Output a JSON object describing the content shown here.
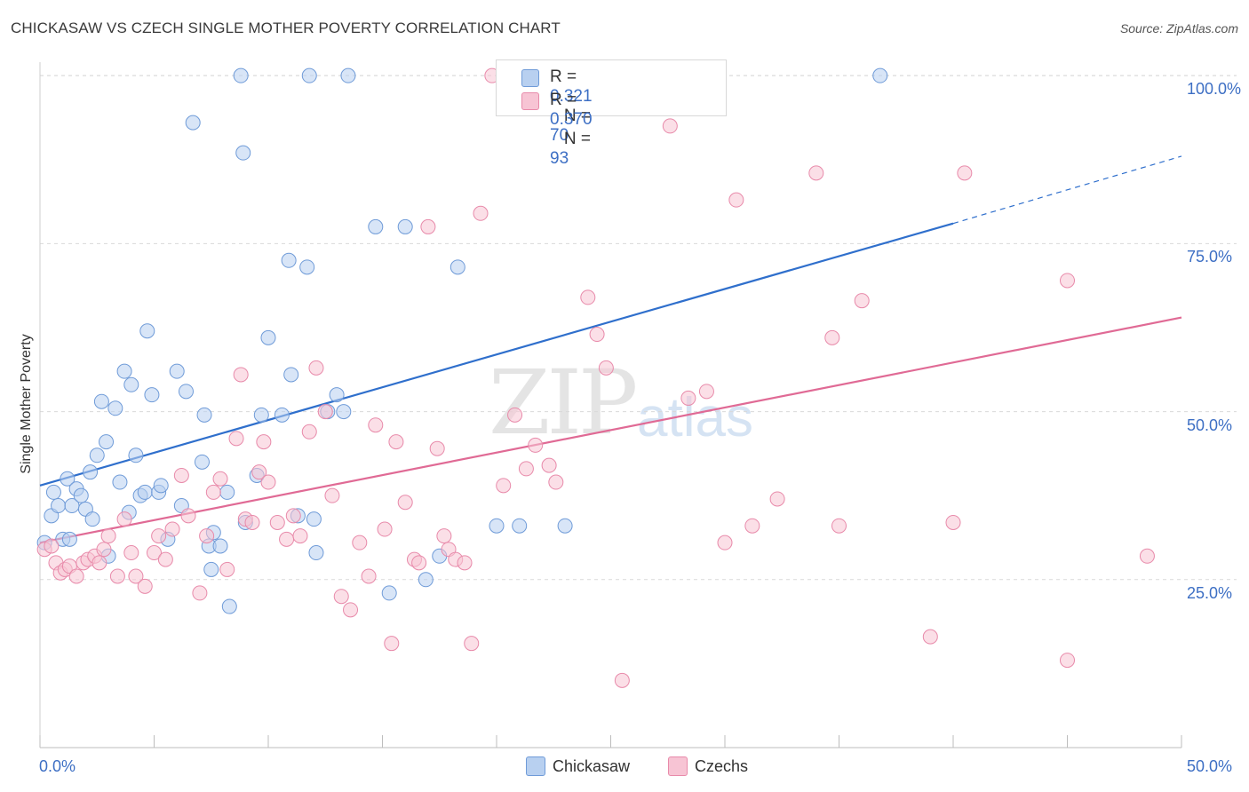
{
  "title": "CHICKASAW VS CZECH SINGLE MOTHER POVERTY CORRELATION CHART",
  "source": "Source: ZipAtlas.com",
  "watermark": {
    "zip": "ZIP",
    "atlas": "atlas"
  },
  "colors": {
    "blue_fill": "#b8d0f0",
    "blue_stroke": "#6f9bd8",
    "blue_line": "#2f6fcc",
    "pink_fill": "#f7c4d4",
    "pink_stroke": "#e88aaa",
    "pink_line": "#e06a95",
    "axis_text": "#3d6fc4",
    "grid": "#d9d9d9"
  },
  "legend": {
    "rows": [
      {
        "r_label": "R =",
        "r_value": "0.321",
        "n_label": "N =",
        "n_value": "70"
      },
      {
        "r_label": "R =",
        "r_value": "0.370",
        "n_label": "N =",
        "n_value": "93"
      }
    ]
  },
  "bottom_legend": {
    "series1": "Chickasaw",
    "series2": "Czechs"
  },
  "chart_data": {
    "type": "scatter",
    "title": "CHICKASAW VS CZECH SINGLE MOTHER POVERTY CORRELATION CHART",
    "xlabel": "",
    "ylabel": "Single Mother Poverty",
    "xlim": [
      0,
      50
    ],
    "ylim": [
      0,
      102
    ],
    "x_tick_labels": [
      "0.0%",
      "50.0%"
    ],
    "y_tick_labels": [
      "25.0%",
      "50.0%",
      "75.0%",
      "100.0%"
    ],
    "y_ticks": [
      25,
      50,
      75,
      100
    ],
    "grid": true,
    "legend_position": "top-center",
    "series": [
      {
        "name": "Chickasaw",
        "r": 0.321,
        "n": 70,
        "trend": {
          "x0": 0,
          "y0": 39,
          "x1": 40,
          "y1": 78,
          "dash_to_x": 50,
          "dash_to_y": 88
        },
        "points": [
          [
            0.2,
            30.5
          ],
          [
            0.5,
            34.5
          ],
          [
            0.6,
            38
          ],
          [
            0.8,
            36
          ],
          [
            1.0,
            31
          ],
          [
            1.2,
            40
          ],
          [
            1.4,
            36
          ],
          [
            1.6,
            38.5
          ],
          [
            1.8,
            37.5
          ],
          [
            2.0,
            35.5
          ],
          [
            2.2,
            41
          ],
          [
            2.3,
            34
          ],
          [
            2.5,
            43.5
          ],
          [
            2.7,
            51.5
          ],
          [
            2.9,
            45.5
          ],
          [
            3.0,
            28.5
          ],
          [
            3.3,
            50.5
          ],
          [
            3.5,
            39.5
          ],
          [
            3.7,
            56
          ],
          [
            3.9,
            35
          ],
          [
            4.0,
            54
          ],
          [
            4.2,
            43.5
          ],
          [
            4.4,
            37.5
          ],
          [
            4.6,
            38
          ],
          [
            4.7,
            62
          ],
          [
            4.9,
            52.5
          ],
          [
            5.2,
            38
          ],
          [
            5.3,
            39
          ],
          [
            5.6,
            31
          ],
          [
            6.0,
            56
          ],
          [
            6.2,
            36
          ],
          [
            6.4,
            53
          ],
          [
            6.7,
            93
          ],
          [
            7.1,
            42.5
          ],
          [
            7.2,
            49.5
          ],
          [
            7.4,
            30
          ],
          [
            7.5,
            26.5
          ],
          [
            7.6,
            32
          ],
          [
            7.9,
            30
          ],
          [
            8.2,
            38
          ],
          [
            8.3,
            21
          ],
          [
            8.8,
            100
          ],
          [
            8.9,
            88.5
          ],
          [
            9.0,
            33.5
          ],
          [
            9.5,
            40.5
          ],
          [
            9.7,
            49.5
          ],
          [
            10.0,
            61
          ],
          [
            10.6,
            49.5
          ],
          [
            10.9,
            72.5
          ],
          [
            11.0,
            55.5
          ],
          [
            11.3,
            34.5
          ],
          [
            11.7,
            71.5
          ],
          [
            11.8,
            100
          ],
          [
            12.0,
            34
          ],
          [
            12.1,
            29
          ],
          [
            12.6,
            50
          ],
          [
            13.0,
            52.5
          ],
          [
            13.3,
            50
          ],
          [
            13.5,
            100
          ],
          [
            14.7,
            77.5
          ],
          [
            15.3,
            23
          ],
          [
            16.0,
            77.5
          ],
          [
            16.9,
            25
          ],
          [
            17.5,
            28.5
          ],
          [
            18.3,
            71.5
          ],
          [
            20.0,
            33
          ],
          [
            21.0,
            33
          ],
          [
            23.0,
            33
          ],
          [
            36.8,
            100
          ],
          [
            1.3,
            31
          ]
        ]
      },
      {
        "name": "Czechs",
        "r": 0.37,
        "n": 93,
        "trend": {
          "x0": 0,
          "y0": 30.5,
          "x1": 50,
          "y1": 64
        },
        "points": [
          [
            0.2,
            29.5
          ],
          [
            0.5,
            30
          ],
          [
            0.7,
            27.5
          ],
          [
            0.9,
            26
          ],
          [
            1.1,
            26.5
          ],
          [
            1.3,
            27
          ],
          [
            1.6,
            25.5
          ],
          [
            1.9,
            27.5
          ],
          [
            2.1,
            28
          ],
          [
            2.4,
            28.5
          ],
          [
            2.6,
            27.5
          ],
          [
            2.8,
            29.5
          ],
          [
            3.0,
            31.5
          ],
          [
            3.4,
            25.5
          ],
          [
            3.7,
            34
          ],
          [
            4.0,
            29
          ],
          [
            4.2,
            25.5
          ],
          [
            4.6,
            24
          ],
          [
            5.0,
            29
          ],
          [
            5.2,
            31.5
          ],
          [
            5.5,
            28
          ],
          [
            5.8,
            32.5
          ],
          [
            6.2,
            40.5
          ],
          [
            6.5,
            34.5
          ],
          [
            7.0,
            23
          ],
          [
            7.3,
            31.5
          ],
          [
            7.6,
            38
          ],
          [
            7.9,
            40
          ],
          [
            8.2,
            26.5
          ],
          [
            8.6,
            46
          ],
          [
            8.8,
            55.5
          ],
          [
            9.0,
            34
          ],
          [
            9.3,
            33.5
          ],
          [
            9.6,
            41
          ],
          [
            9.8,
            45.5
          ],
          [
            10.0,
            39.5
          ],
          [
            10.4,
            33.5
          ],
          [
            10.8,
            31
          ],
          [
            11.1,
            34.5
          ],
          [
            11.4,
            31.5
          ],
          [
            11.8,
            47
          ],
          [
            12.1,
            56.5
          ],
          [
            12.5,
            50
          ],
          [
            12.8,
            37.5
          ],
          [
            13.2,
            22.5
          ],
          [
            13.6,
            20.5
          ],
          [
            14.0,
            30.5
          ],
          [
            14.4,
            25.5
          ],
          [
            14.7,
            48
          ],
          [
            15.1,
            32.5
          ],
          [
            15.4,
            15.5
          ],
          [
            15.6,
            45.5
          ],
          [
            16.0,
            36.5
          ],
          [
            16.4,
            28
          ],
          [
            16.6,
            27.5
          ],
          [
            17.0,
            77.5
          ],
          [
            17.4,
            44.5
          ],
          [
            17.7,
            31.5
          ],
          [
            17.9,
            29.5
          ],
          [
            18.2,
            28
          ],
          [
            18.6,
            27.5
          ],
          [
            18.9,
            15.5
          ],
          [
            19.3,
            79.5
          ],
          [
            19.8,
            100
          ],
          [
            20.3,
            39
          ],
          [
            20.8,
            49.5
          ],
          [
            21.3,
            41.5
          ],
          [
            21.7,
            45
          ],
          [
            22.3,
            42
          ],
          [
            22.6,
            39.5
          ],
          [
            23.0,
            100
          ],
          [
            24.0,
            67
          ],
          [
            24.4,
            61.5
          ],
          [
            24.8,
            56.5
          ],
          [
            25.5,
            10
          ],
          [
            26.4,
            100
          ],
          [
            27.6,
            92.5
          ],
          [
            28.4,
            52
          ],
          [
            29.2,
            53
          ],
          [
            30.0,
            30.5
          ],
          [
            30.5,
            81.5
          ],
          [
            31.2,
            33
          ],
          [
            32.3,
            37
          ],
          [
            34.0,
            85.5
          ],
          [
            34.7,
            61
          ],
          [
            35.0,
            33
          ],
          [
            36.0,
            66.5
          ],
          [
            39.0,
            16.5
          ],
          [
            40.0,
            33.5
          ],
          [
            40.5,
            85.5
          ],
          [
            45.0,
            69.5
          ],
          [
            45.0,
            13
          ],
          [
            48.5,
            28.5
          ]
        ]
      }
    ]
  }
}
